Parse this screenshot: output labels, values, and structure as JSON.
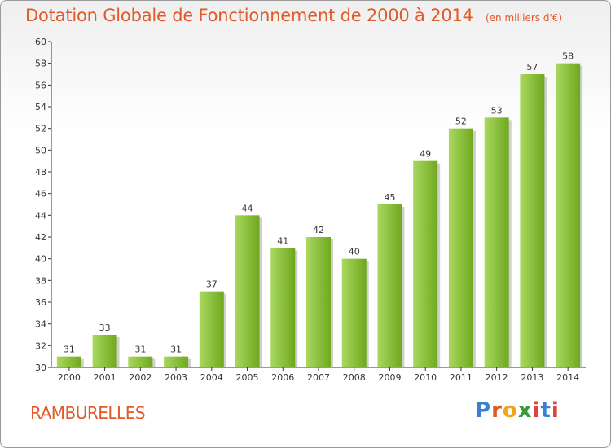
{
  "title": "Dotation Globale de Fonctionnement de 2000 à 2014",
  "subtitle": "(en milliers d'€)",
  "place_name": "RAMBURELLES",
  "logo": {
    "text": "Proxiti",
    "letter_colors": [
      "#3a7fd0",
      "#e0582a",
      "#f2a419",
      "#3a9a3a",
      "#e04040",
      "#3a7fd0",
      "#e04040"
    ]
  },
  "colors": {
    "bar_light": "#a9d85f",
    "bar_dark": "#6fa81f",
    "axis": "#333333",
    "grid": "#bbbbbb",
    "label": "#333333"
  },
  "chart_data": {
    "type": "bar",
    "categories": [
      "2000",
      "2001",
      "2002",
      "2003",
      "2004",
      "2005",
      "2006",
      "2007",
      "2008",
      "2009",
      "2010",
      "2011",
      "2012",
      "2013",
      "2014"
    ],
    "values": [
      31,
      33,
      31,
      31,
      37,
      44,
      41,
      42,
      40,
      45,
      49,
      52,
      53,
      57,
      58
    ],
    "ylim": [
      30,
      60
    ],
    "yticks": [
      30,
      32,
      34,
      36,
      38,
      40,
      42,
      44,
      46,
      48,
      50,
      52,
      54,
      56,
      58,
      60
    ],
    "grid": false
  }
}
